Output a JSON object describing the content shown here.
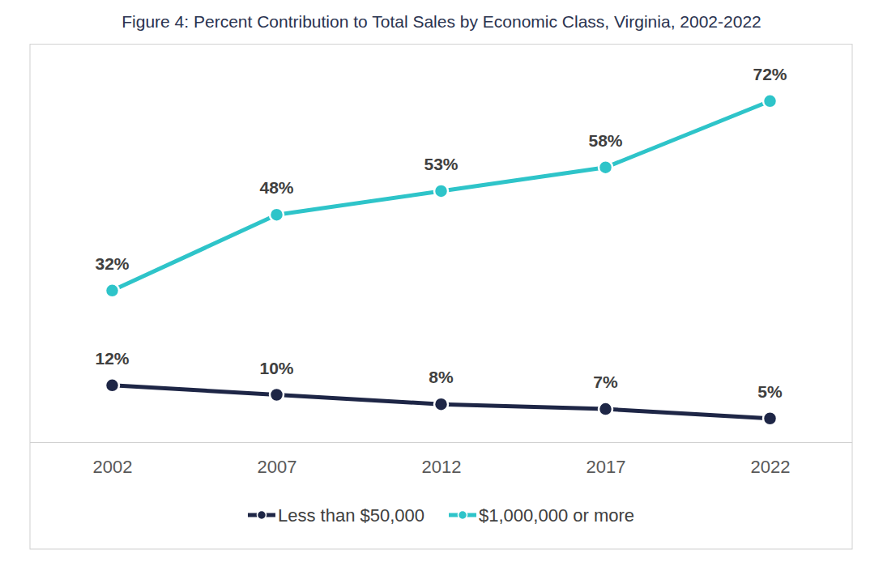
{
  "chart_data": {
    "type": "line",
    "title": "Figure 4: Percent Contribution to Total Sales by Economic Class, Virginia, 2002-2022",
    "categories": [
      "2002",
      "2007",
      "2012",
      "2017",
      "2022"
    ],
    "series": [
      {
        "name": "Less than $50,000",
        "color": "#1e2646",
        "marker": "circle",
        "values": [
          12,
          10,
          8,
          7,
          5
        ],
        "value_labels": [
          "12%",
          "10%",
          "8%",
          "7%",
          "5%"
        ]
      },
      {
        "name": "$1,000,000 or more",
        "color": "#2ec4c9",
        "marker": "circle",
        "values": [
          32,
          48,
          53,
          58,
          72
        ],
        "value_labels": [
          "32%",
          "48%",
          "53%",
          "58%",
          "72%"
        ]
      }
    ],
    "ylim": [
      0,
      84
    ],
    "data_labels": true,
    "tick_labels": "x",
    "grid": false,
    "legend": "bottom"
  }
}
